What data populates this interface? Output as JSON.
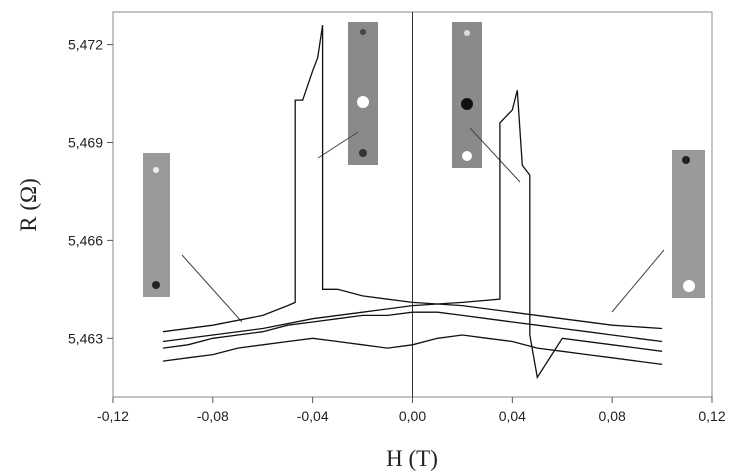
{
  "chart_data": {
    "type": "line",
    "x_label": "H (T)",
    "y_label": "R (Ω)",
    "color": "#111",
    "xlim": [
      -0.12,
      0.12
    ],
    "ylim": [
      5.4612,
      5.473
    ],
    "xticks": [
      {
        "value": -0.12,
        "label": "-0,12"
      },
      {
        "value": -0.08,
        "label": "-0,08"
      },
      {
        "value": -0.04,
        "label": "-0,04"
      },
      {
        "value": 0,
        "label": "0,00"
      },
      {
        "value": 0.04,
        "label": "0,04"
      },
      {
        "value": 0.08,
        "label": "0,08"
      },
      {
        "value": 0.12,
        "label": "0,12"
      }
    ],
    "yticks": [
      {
        "value": 5.463,
        "label": "5,463"
      },
      {
        "value": 5.466,
        "label": "5,466"
      },
      {
        "value": 5.469,
        "label": "5,469"
      },
      {
        "value": 5.472,
        "label": "5,472"
      }
    ],
    "series": [
      {
        "x": [
          -0.1,
          -0.09,
          -0.08,
          -0.07,
          -0.06,
          -0.05,
          -0.04,
          -0.03,
          -0.02,
          -0.01,
          0,
          0.01,
          0.02,
          0.03,
          0.04,
          0.05,
          0.06,
          0.07,
          0.08,
          0.09,
          0.1
        ],
        "values": [
          5.4627,
          5.4628,
          5.463,
          5.4631,
          5.4632,
          5.4634,
          5.4635,
          5.4636,
          5.4637,
          5.4637,
          5.4638,
          5.4638,
          5.4637,
          5.4636,
          5.4635,
          5.4634,
          5.4633,
          5.4632,
          5.4631,
          5.463,
          5.4629
        ]
      },
      {
        "x": [
          -0.1,
          -0.09,
          -0.08,
          -0.07,
          -0.06,
          -0.05,
          -0.04,
          -0.03,
          -0.02,
          -0.01,
          0,
          0.01,
          0.02,
          0.03,
          0.04,
          0.05,
          0.06,
          0.07,
          0.08,
          0.09,
          0.1
        ],
        "values": [
          5.4623,
          5.4624,
          5.4625,
          5.4627,
          5.4628,
          5.4629,
          5.463,
          5.4629,
          5.4628,
          5.4627,
          5.4628,
          5.463,
          5.4631,
          5.463,
          5.4629,
          5.4627,
          5.4626,
          5.4625,
          5.4624,
          5.4623,
          5.4622
        ]
      },
      {
        "x": [
          -0.1,
          -0.08,
          -0.06,
          -0.05,
          -0.047,
          -0.047,
          -0.044,
          -0.04,
          -0.038,
          -0.036,
          -0.036,
          -0.03,
          -0.02,
          0,
          0.02,
          0.04,
          0.06,
          0.08,
          0.1
        ],
        "values": [
          5.4632,
          5.4634,
          5.4637,
          5.464,
          5.4641,
          5.4703,
          5.4703,
          5.4712,
          5.4716,
          5.4726,
          5.4645,
          5.4645,
          5.4643,
          5.4641,
          5.464,
          5.4638,
          5.4636,
          5.4634,
          5.4633
        ]
      },
      {
        "x": [
          -0.1,
          -0.08,
          -0.06,
          -0.04,
          -0.02,
          0,
          0.02,
          0.035,
          0.035,
          0.04,
          0.042,
          0.044,
          0.047,
          0.047,
          0.05,
          0.06,
          0.08,
          0.1
        ],
        "values": [
          5.4629,
          5.4631,
          5.4633,
          5.4636,
          5.4638,
          5.464,
          5.4641,
          5.4642,
          5.4696,
          5.47,
          5.4706,
          5.4683,
          5.468,
          5.4631,
          5.4618,
          5.463,
          5.4628,
          5.4626
        ]
      }
    ]
  }
}
